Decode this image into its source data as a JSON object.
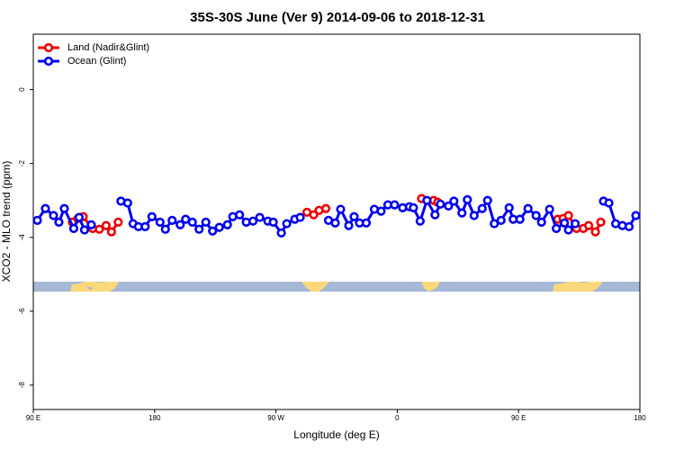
{
  "chart_data": {
    "type": "line",
    "title": "35S-30S June (Ver 9)   2014-09-06 to 2018-12-31",
    "xlabel": "Longitude (deg E)",
    "ylabel": "XCO2 - MLO trend (ppm)",
    "xlim": [
      90,
      540
    ],
    "xticks": [
      {
        "value": 90,
        "label": "90 E"
      },
      180,
      {
        "value": 270,
        "label": "90 W"
      },
      {
        "value": 360,
        "label": "0"
      },
      {
        "value": 450,
        "label": "90 E"
      },
      {
        "value": 540,
        "label": "180"
      }
    ],
    "ylim": [
      -8.66,
      1.5
    ],
    "yticks": [
      0,
      -2,
      -4,
      -6,
      -8
    ],
    "legend": "upper left",
    "series": [
      {
        "name": "Land (Nadir&Glint)",
        "color": "#ee0000",
        "x": [
          119,
          123,
          127,
          134,
          139,
          144,
          148,
          153,
          null,
          293,
          298,
          302,
          307,
          null,
          378,
          387,
          390,
          null,
          479,
          483,
          487,
          493,
          498,
          502,
          507,
          511
        ],
        "values": [
          -3.59,
          -3.49,
          -3.44,
          -3.76,
          -3.78,
          -3.68,
          -3.85,
          -3.59,
          null,
          -3.32,
          -3.39,
          -3.27,
          -3.22,
          null,
          -2.95,
          -3.0,
          -3.05,
          null,
          -3.51,
          -3.49,
          -3.41,
          -3.76,
          -3.76,
          -3.68,
          -3.85,
          -3.59
        ]
      },
      {
        "name": "Ocean (Glint)",
        "color": "#0000ee",
        "x": [
          93,
          99,
          105,
          109,
          113,
          120,
          124,
          128,
          133,
          null,
          155,
          160,
          164,
          168,
          173,
          178,
          184,
          188,
          193,
          199,
          203,
          208,
          213,
          218,
          223,
          228,
          234,
          238,
          243,
          248,
          253,
          258,
          264,
          268,
          274,
          278,
          284,
          288,
          null,
          309,
          314,
          318,
          324,
          328,
          332,
          337,
          343,
          348,
          353,
          358,
          364,
          369,
          372,
          377,
          382,
          388,
          392,
          398,
          402,
          408,
          412,
          417,
          423,
          427,
          432,
          437,
          443,
          446,
          451,
          457,
          463,
          467,
          473,
          478,
          484,
          487,
          492,
          null,
          513,
          517,
          522,
          527,
          532,
          537
        ],
        "values": [
          -3.54,
          -3.22,
          -3.41,
          -3.59,
          -3.22,
          -3.76,
          -3.46,
          -3.8,
          -3.66,
          null,
          -3.02,
          -3.07,
          -3.63,
          -3.71,
          -3.71,
          -3.44,
          -3.59,
          -3.78,
          -3.54,
          -3.66,
          -3.51,
          -3.59,
          -3.78,
          -3.59,
          -3.83,
          -3.73,
          -3.66,
          -3.44,
          -3.39,
          -3.59,
          -3.56,
          -3.46,
          -3.56,
          -3.59,
          -3.88,
          -3.63,
          -3.51,
          -3.46,
          null,
          -3.54,
          -3.61,
          -3.24,
          -3.68,
          -3.44,
          -3.61,
          -3.61,
          -3.24,
          -3.29,
          -3.12,
          -3.12,
          -3.2,
          -3.17,
          -3.2,
          -3.56,
          -3.0,
          -3.39,
          -3.1,
          -3.15,
          -3.02,
          -3.34,
          -2.98,
          -3.41,
          -3.22,
          -3.0,
          -3.63,
          -3.54,
          -3.2,
          -3.51,
          -3.51,
          -3.22,
          -3.41,
          -3.59,
          -3.24,
          -3.76,
          -3.61,
          -3.8,
          -3.63,
          null,
          -3.02,
          -3.07,
          -3.63,
          -3.68,
          -3.71,
          -3.41
        ]
      }
    ]
  }
}
